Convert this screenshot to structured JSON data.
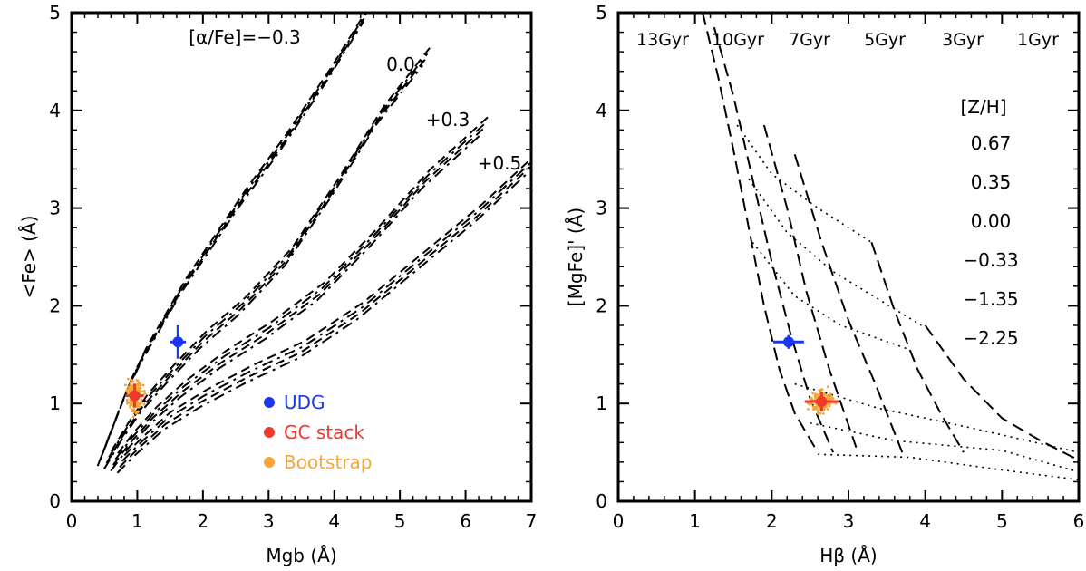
{
  "chart_data": [
    {
      "type": "line",
      "xlabel": "Mgb (Å)",
      "ylabel": "<Fe> (Å)",
      "xlim": [
        0,
        7
      ],
      "ylim": [
        0,
        5
      ],
      "xticks": [
        0,
        1,
        2,
        3,
        4,
        5,
        6,
        7
      ],
      "yticks": [
        0,
        1,
        2,
        3,
        4,
        5
      ],
      "grid": false,
      "model_labels": [
        "[α/Fe]=−0.3",
        "0.0",
        "+0.3",
        "+0.5"
      ],
      "model_tracks": [
        {
          "name": "[α/Fe]=−0.3",
          "x": [
            0.45,
            0.65,
            0.85,
            1.1,
            1.4,
            1.7,
            2.1,
            2.6,
            3.2,
            3.9,
            4.5
          ],
          "y": [
            0.45,
            0.8,
            1.15,
            1.5,
            1.85,
            2.2,
            2.6,
            3.1,
            3.65,
            4.35,
            5.0
          ]
        },
        {
          "name": "0.0",
          "x": [
            0.55,
            0.8,
            1.1,
            1.5,
            2.0,
            2.6,
            3.3,
            4.0,
            4.7,
            5.4
          ],
          "y": [
            0.42,
            0.7,
            1.0,
            1.3,
            1.65,
            2.0,
            2.5,
            3.2,
            3.95,
            4.55
          ]
        },
        {
          "name": "+0.3",
          "x": [
            0.65,
            0.9,
            1.25,
            1.7,
            2.3,
            3.0,
            3.8,
            4.6,
            5.4,
            6.3
          ],
          "y": [
            0.4,
            0.62,
            0.88,
            1.15,
            1.45,
            1.75,
            2.15,
            2.7,
            3.3,
            3.85
          ]
        },
        {
          "name": "+0.5",
          "x": [
            0.75,
            1.05,
            1.45,
            2.0,
            2.7,
            3.5,
            4.4,
            5.3,
            6.2,
            7.0
          ],
          "y": [
            0.38,
            0.58,
            0.82,
            1.05,
            1.3,
            1.55,
            1.95,
            2.45,
            2.95,
            3.45
          ]
        }
      ],
      "points": [
        {
          "name": "UDG",
          "x": 1.62,
          "y": 1.63,
          "xerr": 0.12,
          "yerr": 0.17,
          "color": "#1a36f0"
        },
        {
          "name": "GC stack",
          "x": 0.96,
          "y": 1.08,
          "xerr": 0.14,
          "yerr": 0.12,
          "color": "#ef3a2b"
        }
      ],
      "bootstrap": {
        "name": "Bootstrap",
        "color": "#f5a53a",
        "center": [
          0.96,
          1.08
        ],
        "spread": [
          0.22,
          0.3
        ]
      },
      "legend": {
        "placement": "bottom-center",
        "entries": [
          {
            "label": "UDG",
            "color": "#1a36f0"
          },
          {
            "label": "GC stack",
            "color": "#ef3a2b"
          },
          {
            "label": "Bootstrap",
            "color": "#f5a53a"
          }
        ]
      }
    },
    {
      "type": "line",
      "xlabel": "Hβ (Å)",
      "ylabel": "[MgFe]' (Å)",
      "xlim": [
        0,
        6
      ],
      "ylim": [
        0,
        5
      ],
      "xticks": [
        0,
        1,
        2,
        3,
        4,
        5,
        6
      ],
      "yticks": [
        0,
        1,
        2,
        3,
        4,
        5
      ],
      "grid": false,
      "age_labels": [
        "13Gyr",
        "10Gyr",
        "7Gyr",
        "5Gyr",
        "3Gyr",
        "1Gyr"
      ],
      "metallicity_title": "[Z/H]",
      "metallicity_labels": [
        "0.67",
        "0.35",
        "0.00",
        "−0.33",
        "−1.35",
        "−2.25"
      ],
      "iso_age_tracks": [
        {
          "name": "13Gyr",
          "x": [
            1.1,
            1.3,
            1.5,
            1.7,
            1.9,
            2.1,
            2.3,
            2.6
          ],
          "y": [
            5.0,
            4.35,
            3.6,
            2.8,
            2.0,
            1.35,
            0.9,
            0.5
          ]
        },
        {
          "name": "10Gyr",
          "x": [
            1.25,
            1.5,
            1.75,
            2.0,
            2.25,
            2.5,
            2.8
          ],
          "y": [
            4.85,
            4.15,
            3.3,
            2.45,
            1.7,
            1.05,
            0.5
          ]
        },
        {
          "name": "7Gyr",
          "x": [
            1.9,
            2.2,
            2.45,
            2.75,
            3.1
          ],
          "y": [
            3.85,
            3.0,
            2.15,
            1.35,
            0.55
          ]
        },
        {
          "name": "5Gyr",
          "x": [
            2.3,
            2.65,
            3.0,
            3.35,
            3.7
          ],
          "y": [
            3.55,
            2.65,
            1.85,
            1.2,
            0.5
          ]
        },
        {
          "name": "3Gyr",
          "x": [
            3.3,
            3.6,
            3.9,
            4.2,
            4.5
          ],
          "y": [
            2.65,
            1.95,
            1.35,
            0.9,
            0.5
          ]
        },
        {
          "name": "1Gyr",
          "x": [
            4.0,
            4.5,
            5.0,
            5.5,
            6.0
          ],
          "y": [
            1.8,
            1.25,
            0.85,
            0.62,
            0.42
          ]
        }
      ],
      "iso_metal_tracks": [
        {
          "name": "0.67",
          "x": [
            1.55,
            2.0,
            2.6,
            3.3
          ],
          "y": [
            3.85,
            3.35,
            3.0,
            2.65
          ]
        },
        {
          "name": "0.35",
          "x": [
            1.7,
            2.2,
            2.8,
            3.95
          ],
          "y": [
            3.3,
            2.75,
            2.35,
            1.8
          ]
        },
        {
          "name": "0.00",
          "x": [
            1.75,
            2.3,
            2.9,
            3.8
          ],
          "y": [
            2.65,
            2.1,
            1.8,
            1.55
          ]
        },
        {
          "name": "−0.33",
          "x": [
            2.3,
            3.4,
            4.6,
            6.0
          ],
          "y": [
            1.2,
            0.95,
            0.75,
            0.5
          ]
        },
        {
          "name": "−1.35",
          "x": [
            2.5,
            3.6,
            5.0,
            6.0
          ],
          "y": [
            0.8,
            0.62,
            0.52,
            0.3
          ]
        },
        {
          "name": "−2.25",
          "x": [
            2.6,
            3.8,
            5.0,
            6.0
          ],
          "y": [
            0.48,
            0.45,
            0.32,
            0.22
          ]
        }
      ],
      "points": [
        {
          "name": "UDG",
          "x": 2.22,
          "y": 1.63,
          "xerr": 0.2,
          "yerr": 0.07,
          "color": "#1a36f0"
        },
        {
          "name": "GC stack",
          "x": 2.65,
          "y": 1.02,
          "xerr": 0.22,
          "yerr": 0.1,
          "color": "#ef3a2b"
        }
      ],
      "bootstrap": {
        "name": "Bootstrap",
        "color": "#f5a53a",
        "center": [
          2.65,
          1.02
        ],
        "spread": [
          0.3,
          0.22
        ]
      }
    }
  ]
}
